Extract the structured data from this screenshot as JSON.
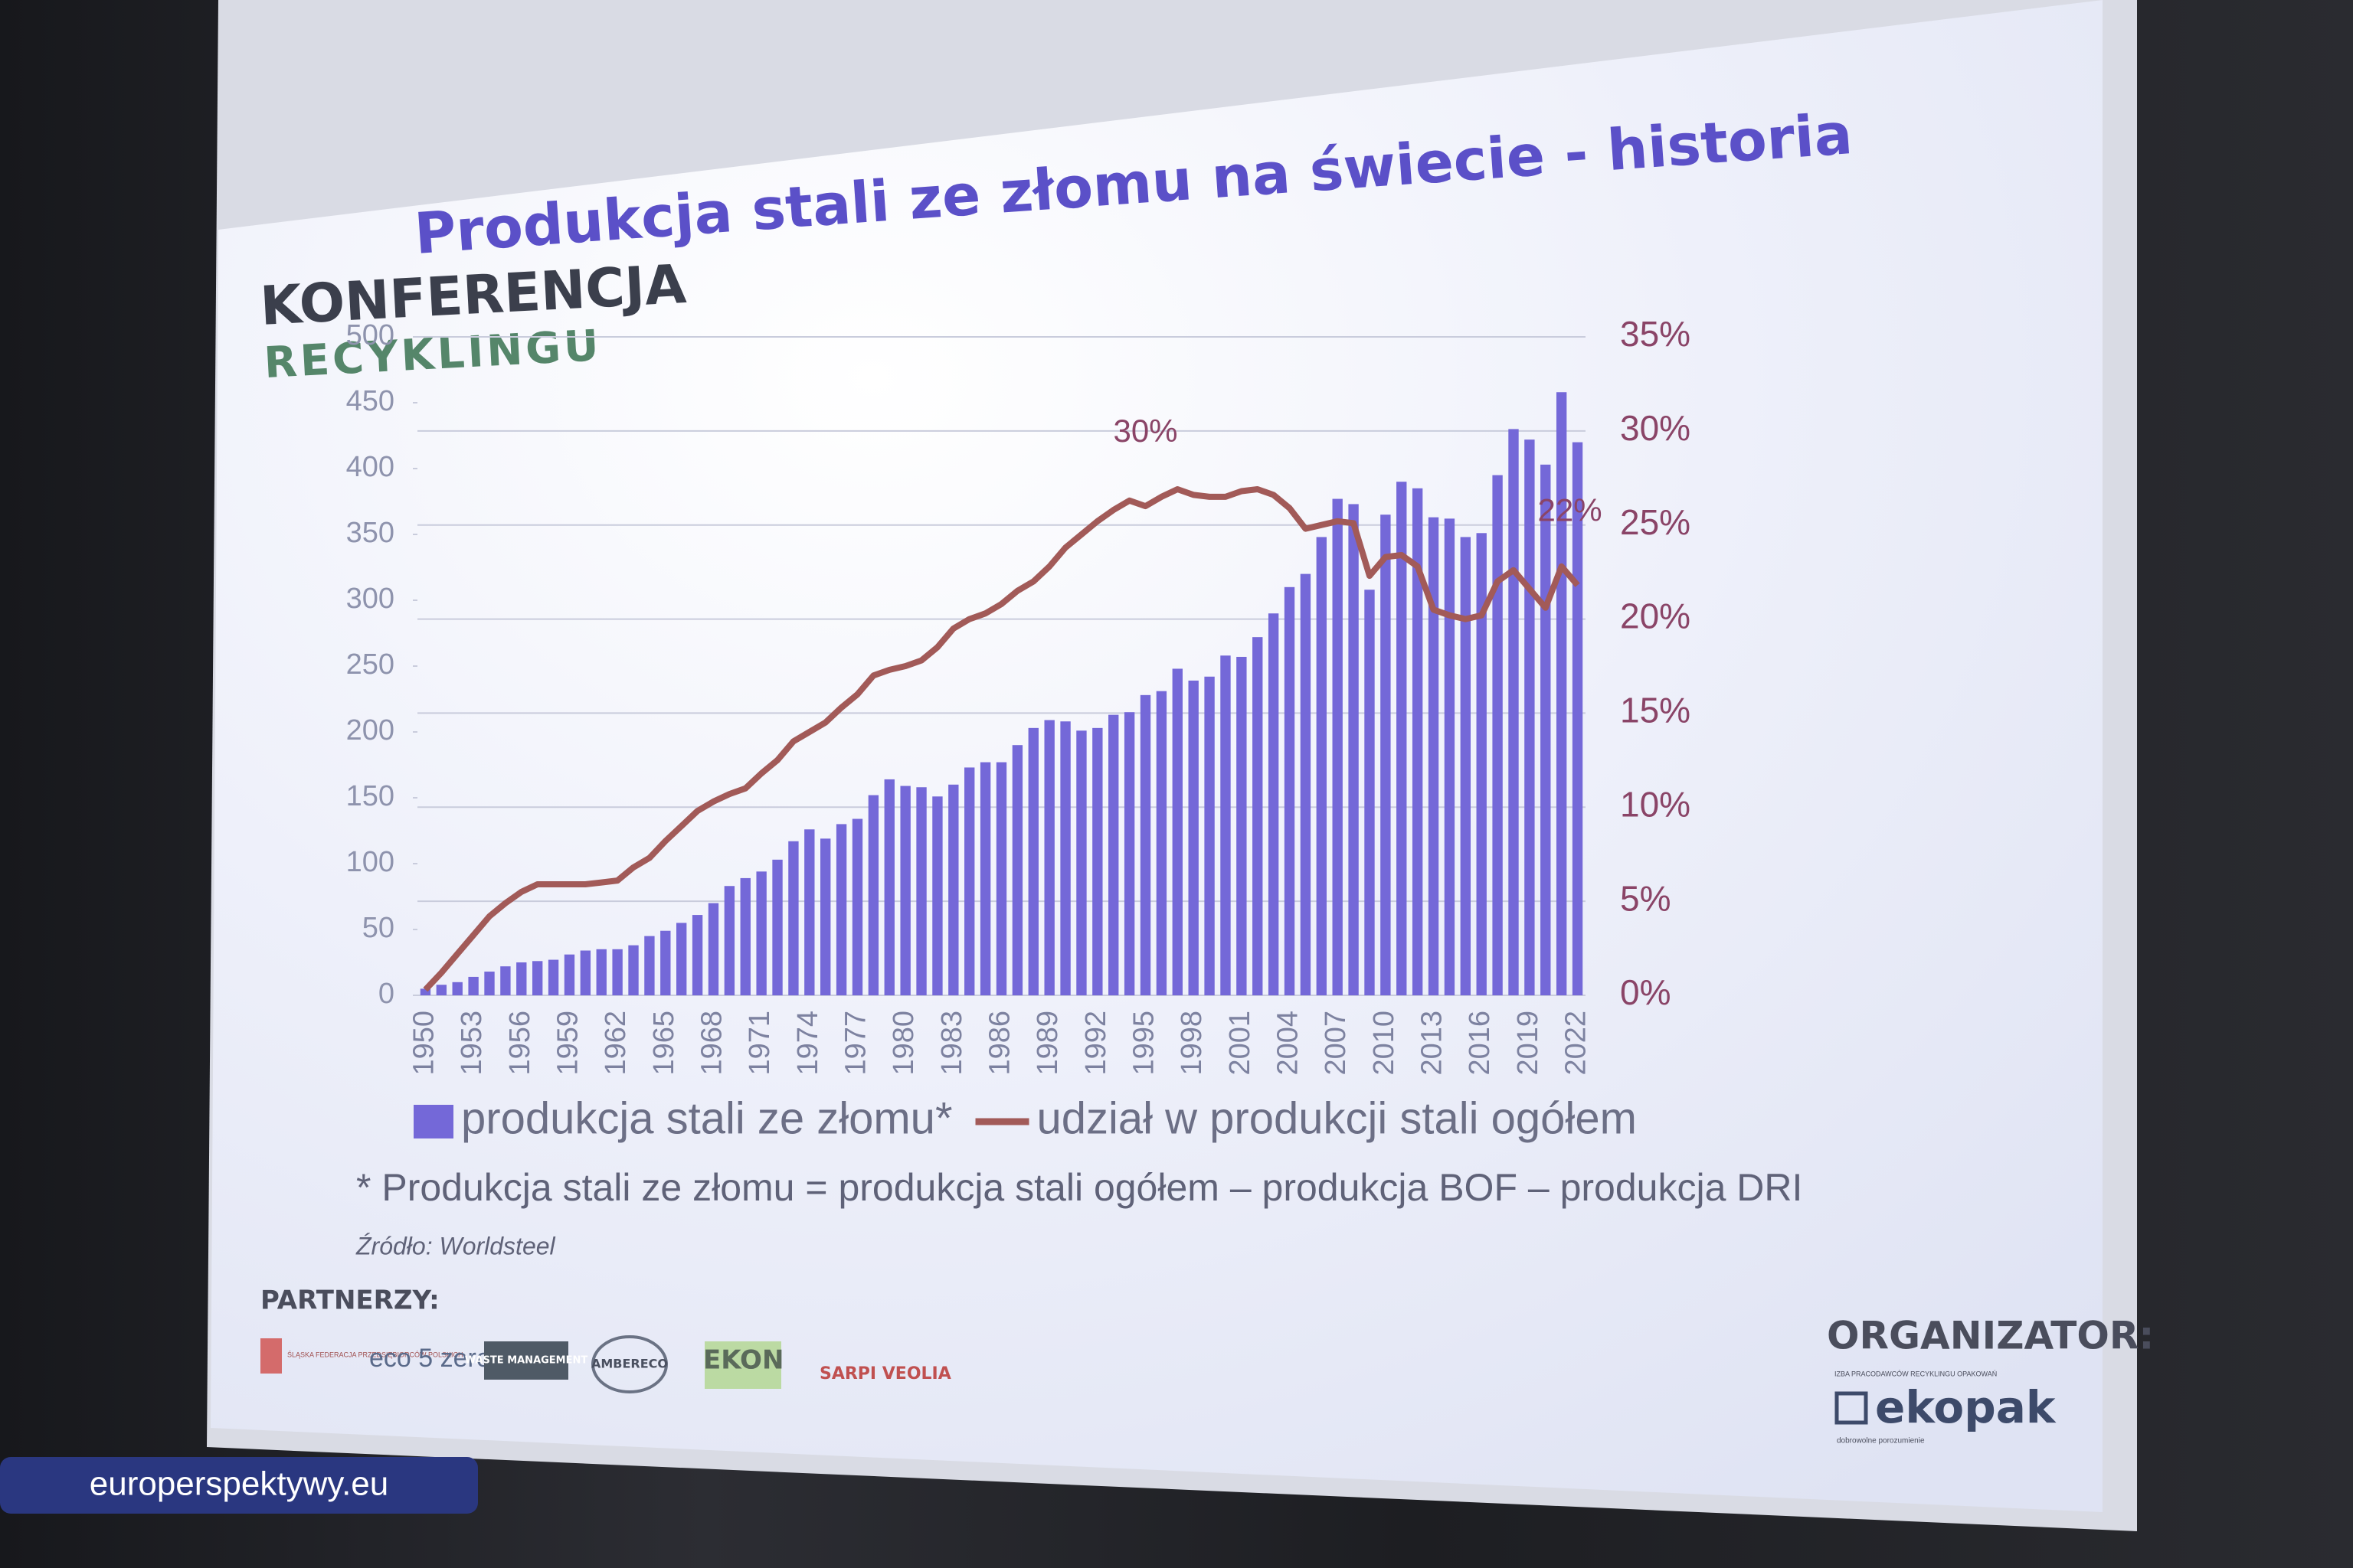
{
  "chart_data": {
    "type": "bar",
    "title": "Produkcja stali ze złomu na świecie - historia",
    "categories": [
      "1950",
      null,
      null,
      "1953",
      null,
      null,
      "1956",
      null,
      null,
      "1959",
      null,
      null,
      "1962",
      null,
      null,
      "1965",
      null,
      null,
      "1968",
      null,
      null,
      "1971",
      null,
      null,
      "1974",
      null,
      null,
      "1977",
      null,
      null,
      "1980",
      null,
      null,
      "1983",
      null,
      null,
      "1986",
      null,
      null,
      "1989",
      null,
      null,
      "1992",
      null,
      null,
      "1995",
      null,
      null,
      "1998",
      null,
      null,
      "2001",
      null,
      null,
      "2004",
      null,
      null,
      "2007",
      null,
      null,
      "2010",
      null,
      null,
      "2013",
      null,
      null,
      "2016",
      null,
      null,
      "2019",
      null,
      null,
      "2022"
    ],
    "series": [
      {
        "name": "produkcja stali ze złomu*",
        "type": "bar",
        "color": "#7468d8",
        "values": [
          5,
          8,
          10,
          14,
          18,
          22,
          25,
          26,
          27,
          31,
          34,
          35,
          35,
          38,
          45,
          49,
          55,
          61,
          70,
          83,
          89,
          94,
          103,
          117,
          126,
          119,
          130,
          134,
          152,
          164,
          159,
          158,
          151,
          160,
          173,
          177,
          177,
          190,
          203,
          209,
          208,
          201,
          203,
          213,
          215,
          228,
          231,
          248,
          239,
          242,
          258,
          257,
          272,
          290,
          310,
          320,
          348,
          377,
          373,
          308,
          365,
          390,
          385,
          363,
          362,
          348,
          351,
          395,
          430,
          422,
          403,
          458,
          420
        ]
      },
      {
        "name": "udział w produkcji stali ogółem",
        "type": "line",
        "axis": "y2",
        "color": "#a25a58",
        "values": [
          0.3,
          1.2,
          2.2,
          3.2,
          4.2,
          4.9,
          5.5,
          5.9,
          5.9,
          5.9,
          5.9,
          6.0,
          6.1,
          6.8,
          7.3,
          8.2,
          9.0,
          9.8,
          10.3,
          10.7,
          11.0,
          11.8,
          12.5,
          13.5,
          14.0,
          14.5,
          15.3,
          16.0,
          17.0,
          17.3,
          17.5,
          17.8,
          18.5,
          19.5,
          20.0,
          20.3,
          20.8,
          21.5,
          22.0,
          22.8,
          23.8,
          24.5,
          25.2,
          25.8,
          26.3,
          26.0,
          26.5,
          26.9,
          26.6,
          26.5,
          26.5,
          26.8,
          26.9,
          26.6,
          25.9,
          24.8,
          25.0,
          25.2,
          25.1,
          22.3,
          23.3,
          23.4,
          22.8,
          20.5,
          20.2,
          20.0,
          20.2,
          22.0,
          22.6,
          21.6,
          20.6,
          22.8,
          21.8
        ]
      }
    ],
    "annotations": [
      "30%",
      "22%"
    ],
    "ylim": [
      0,
      500
    ],
    "yticks": [
      0,
      50,
      100,
      150,
      200,
      250,
      300,
      350,
      400,
      450,
      500
    ],
    "y2lim": [
      0,
      35
    ],
    "y2ticks": [
      {
        "value": 0,
        "label": "0%"
      },
      {
        "value": 5,
        "label": "5%"
      },
      {
        "value": 10,
        "label": "10%"
      },
      {
        "value": 15,
        "label": "15%"
      },
      {
        "value": 20,
        "label": "20%"
      },
      {
        "value": 25,
        "label": "25%"
      },
      {
        "value": 30,
        "label": "30%"
      },
      {
        "value": 35,
        "label": "35%"
      }
    ],
    "grid": true,
    "legend": "bottom"
  },
  "slide": {
    "logo": [
      "KONFERENCJA",
      "RECYKLINGU"
    ],
    "footnote": "* Produkcja stali ze złomu = produkcja stali ogółem – produkcja BOF – produkcja DRI",
    "source": "Źródło: Worldsteel",
    "partners_label": "PARTNERZY:",
    "partners": [
      "ŚLĄSKA FEDERACJA PRZEDSIĘBIORCÓW POLSKICH",
      "eco 5 zero",
      "WASTE MANAGEMENT",
      "AMBERECO",
      "EKON",
      "SARPI VEOLIA"
    ],
    "organizer_label": "ORGANIZATOR:",
    "organizer_tagline": "IZBA PRACODAWCÓW RECYKLINGU OPAKOWAŃ",
    "organizer": "ekopak",
    "organizer_subtitle": "dobrowolne porozumienie"
  },
  "watermark": "europerspektywy.eu"
}
